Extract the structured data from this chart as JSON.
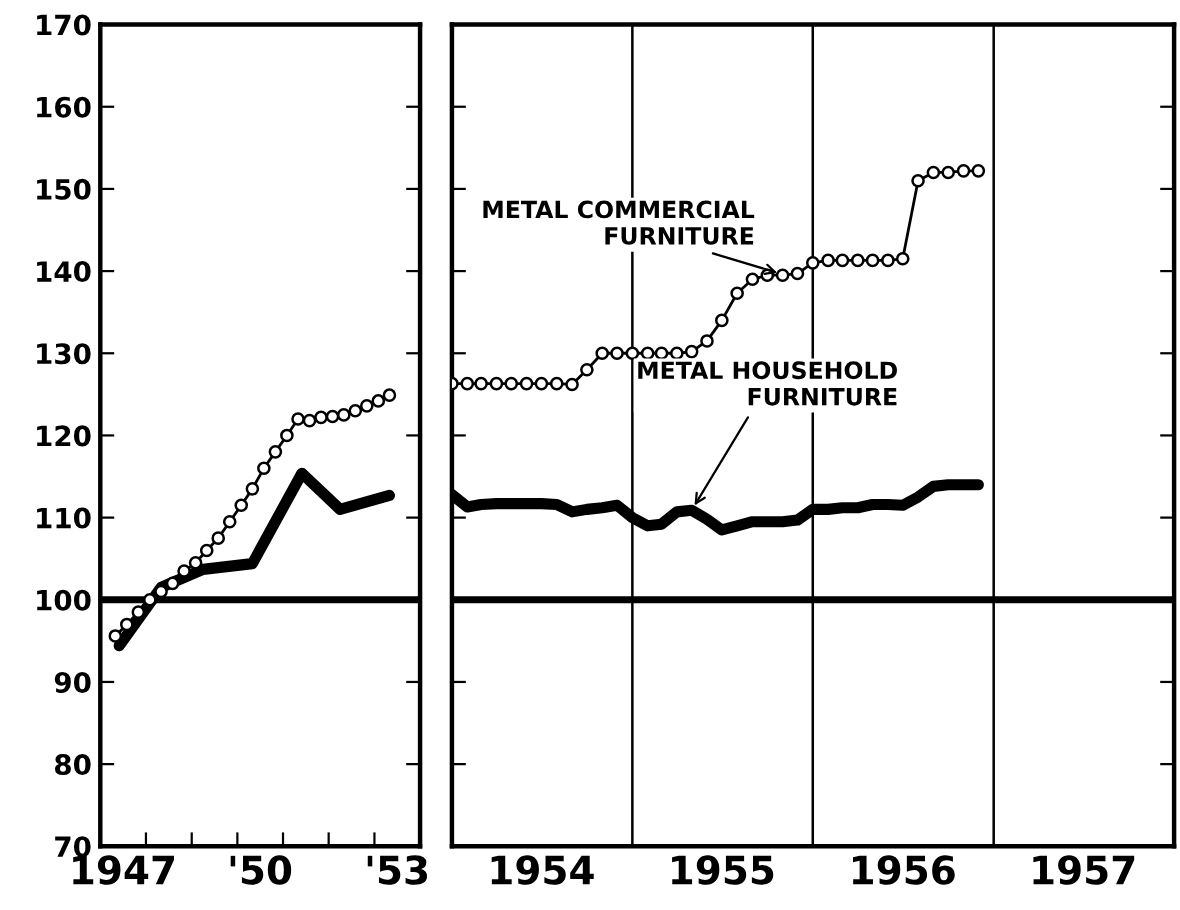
{
  "chart_data": [
    {
      "type": "line",
      "xlim": [
        "1947-01",
        "1954-01"
      ],
      "ylim": [
        70,
        170
      ],
      "yticks": [
        70,
        80,
        90,
        100,
        110,
        120,
        130,
        140,
        150,
        160,
        170
      ],
      "xticks": [
        {
          "value": "1947-07",
          "label": "1947"
        },
        {
          "value": "1948-01",
          "label": null
        },
        {
          "value": "1949-01",
          "label": null
        },
        {
          "value": "1950-01",
          "label": null
        },
        {
          "value": "1950-07",
          "label": "'50"
        },
        {
          "value": "1951-01",
          "label": null
        },
        {
          "value": "1952-01",
          "label": null
        },
        {
          "value": "1953-01",
          "label": null
        },
        {
          "value": "1953-07",
          "label": "'53"
        }
      ],
      "ref_lines": [
        {
          "axis": "y",
          "value": 100,
          "label": null
        }
      ],
      "series": [
        {
          "color": "#000000",
          "marker": "circle",
          "x": [
            "1947-05",
            "1947-08",
            "1947-11",
            "1948-02",
            "1948-05",
            "1948-08",
            "1948-11",
            "1949-02",
            "1949-05",
            "1949-08",
            "1949-11",
            "1950-02",
            "1950-05",
            "1950-08",
            "1950-11",
            "1951-02",
            "1951-05",
            "1951-08",
            "1951-11",
            "1952-02",
            "1952-05",
            "1952-08",
            "1952-11",
            "1953-02",
            "1953-05"
          ],
          "values": [
            95.6,
            97,
            98.5,
            100,
            101,
            102,
            103.5,
            104.5,
            106,
            107.5,
            109.5,
            111.5,
            113.5,
            116,
            118,
            120,
            122,
            121.8,
            122.2,
            122.3,
            122.5,
            123,
            123.6,
            124.2,
            124.9
          ]
        },
        {
          "color": "#000000",
          "marker": "none",
          "x": [
            "1947-06",
            "1948-05",
            "1949-04",
            "1950-05",
            "1951-06",
            "1952-04",
            "1953-05"
          ],
          "values": [
            94.4,
            101.5,
            103.7,
            104.4,
            115.4,
            111,
            112.7
          ]
        }
      ]
    },
    {
      "type": "line",
      "xlim": [
        "1954-01",
        "1958-01"
      ],
      "ylim": [
        70,
        170
      ],
      "yticks": [
        70,
        80,
        90,
        100,
        110,
        120,
        130,
        140,
        150,
        160,
        170
      ],
      "tick_labels": "x",
      "xticks": [
        {
          "value": "1954-07",
          "label": "1954"
        },
        {
          "value": "1955-07",
          "label": "1955"
        },
        {
          "value": "1956-07",
          "label": "1956"
        },
        {
          "value": "1957-07",
          "label": "1957"
        }
      ],
      "ref_lines": [
        {
          "axis": "y",
          "value": 100,
          "label": null
        },
        {
          "axis": "x",
          "value": "1955-01",
          "label": null
        },
        {
          "axis": "x",
          "value": "1956-01",
          "label": null
        },
        {
          "axis": "x",
          "value": "1957-01",
          "label": null
        }
      ],
      "annotations": [
        {
          "text": "METAL COMMERCIAL\nFURNITURE",
          "x": "1955-11",
          "y": 139.6
        },
        {
          "text": "METAL HOUSEHOLD\nFURNITURE",
          "x": "1955-05",
          "y": 110.9
        }
      ],
      "series": [
        {
          "color": "#000000",
          "marker": "circle",
          "x": [
            "1954-01",
            "1954-02",
            "1954-03",
            "1954-04",
            "1954-05",
            "1954-06",
            "1954-07",
            "1954-08",
            "1954-09",
            "1954-10",
            "1954-11",
            "1954-12",
            "1955-01",
            "1955-02",
            "1955-03",
            "1955-04",
            "1955-05",
            "1955-06",
            "1955-07",
            "1955-08",
            "1955-09",
            "1955-10",
            "1955-11",
            "1955-12",
            "1956-01",
            "1956-02",
            "1956-03",
            "1956-04",
            "1956-05",
            "1956-06",
            "1956-07",
            "1956-08",
            "1956-09",
            "1956-10",
            "1956-11",
            "1956-12"
          ],
          "values": [
            126.3,
            126.3,
            126.3,
            126.3,
            126.3,
            126.3,
            126.3,
            126.3,
            126.2,
            128,
            130,
            130,
            130,
            130,
            130,
            130,
            130.2,
            131.5,
            134,
            137.3,
            139,
            139.5,
            139.5,
            139.7,
            141,
            141.3,
            141.3,
            141.3,
            141.3,
            141.3,
            141.5,
            151,
            152,
            152,
            152.2,
            152.2
          ]
        },
        {
          "color": "#000000",
          "marker": "none",
          "x": [
            "1954-01",
            "1954-02",
            "1954-03",
            "1954-04",
            "1954-05",
            "1954-06",
            "1954-07",
            "1954-08",
            "1954-09",
            "1954-10",
            "1954-11",
            "1954-12",
            "1955-01",
            "1955-02",
            "1955-03",
            "1955-04",
            "1955-05",
            "1955-06",
            "1955-07",
            "1955-08",
            "1955-09",
            "1955-10",
            "1955-11",
            "1955-12",
            "1956-01",
            "1956-02",
            "1956-03",
            "1956-04",
            "1956-05",
            "1956-06",
            "1956-07",
            "1956-08",
            "1956-09",
            "1956-10",
            "1956-11",
            "1956-12"
          ],
          "values": [
            112.8,
            111.3,
            111.6,
            111.7,
            111.7,
            111.7,
            111.7,
            111.6,
            110.7,
            111,
            111.2,
            111.5,
            110,
            109,
            109.2,
            110.7,
            110.9,
            109.8,
            108.5,
            109,
            109.5,
            109.5,
            109.5,
            109.7,
            111,
            111,
            111.2,
            111.2,
            111.6,
            111.6,
            111.5,
            112.5,
            113.8,
            114,
            114,
            114
          ]
        }
      ]
    }
  ]
}
